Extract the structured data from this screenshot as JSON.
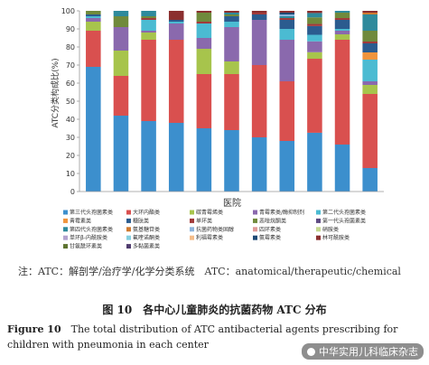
{
  "chart_data": {
    "type": "bar",
    "stacked": true,
    "xlabel": "医院",
    "ylabel": "ATC分类构成比(%)",
    "ylim": [
      0,
      100
    ],
    "yticks": [
      0,
      10,
      20,
      30,
      40,
      50,
      60,
      70,
      80,
      90,
      100
    ],
    "categories": [
      "1",
      "2",
      "3",
      "4",
      "5",
      "6",
      "7",
      "8",
      "9",
      "10",
      "11"
    ],
    "legend_position": "bottom",
    "series": [
      {
        "name": "第三代头孢菌素类",
        "color": "#3c8fcd",
        "values": [
          69,
          42,
          39,
          38,
          35,
          34,
          30,
          28,
          27,
          26,
          13
        ]
      },
      {
        "name": "大环内酯类",
        "color": "#d9504f",
        "values": [
          20,
          22,
          45,
          46,
          30,
          31,
          40,
          33,
          34,
          58,
          41
        ]
      },
      {
        "name": "碳青霉烯类",
        "color": "#a7c44c",
        "values": [
          5,
          14,
          4,
          0,
          14,
          7,
          0,
          0,
          3,
          3,
          5
        ]
      },
      {
        "name": "青霉素类/酶抑制剂",
        "color": "#8a69ad",
        "values": [
          2,
          13,
          1,
          9,
          6,
          19,
          25,
          23,
          5,
          2,
          2
        ]
      },
      {
        "name": "第二代头孢菌素类",
        "color": "#4bbbd2",
        "values": [
          1,
          0,
          6,
          1,
          8,
          3,
          0,
          6,
          3,
          1,
          12
        ]
      },
      {
        "name": "青霉素类",
        "color": "#f0943c",
        "values": [
          0,
          0,
          0,
          0,
          0,
          0,
          0,
          0,
          0,
          0,
          4
        ]
      },
      {
        "name": "糖肽类",
        "color": "#2b5c8f",
        "values": [
          1,
          0,
          0,
          1,
          0,
          3,
          3,
          5,
          4,
          5,
          5
        ]
      },
      {
        "name": "单环类",
        "color": "#a13a3a",
        "values": [
          0,
          0,
          1,
          0,
          1,
          0,
          1,
          1,
          1,
          1,
          1
        ]
      },
      {
        "name": "恶唑烷酮类",
        "color": "#708a3c",
        "values": [
          2,
          6,
          1,
          0,
          5,
          1,
          0,
          0,
          3,
          3,
          6
        ]
      },
      {
        "name": "第一代头孢菌素类",
        "color": "#5e4a82",
        "values": [
          0,
          0,
          0,
          0,
          0,
          0,
          0,
          0,
          0,
          0,
          0
        ]
      },
      {
        "name": "第四代头孢菌素类",
        "color": "#2e8a9c",
        "values": [
          0,
          3,
          3,
          0,
          0,
          1,
          0,
          1,
          2,
          1,
          9
        ]
      },
      {
        "name": "氨基糖苷类",
        "color": "#d07a30",
        "values": [
          0,
          0,
          0,
          0,
          0,
          0,
          0,
          0,
          0,
          0,
          1
        ]
      },
      {
        "name": "抗菌药物类固醇",
        "color": "#8db4dd",
        "values": [
          0,
          0,
          0,
          0,
          0,
          0,
          0,
          1,
          0,
          0,
          0
        ]
      },
      {
        "name": "四环素类",
        "color": "#e09a98",
        "values": [
          0,
          0,
          0,
          0,
          0,
          0,
          0,
          0,
          0,
          0,
          0
        ]
      },
      {
        "name": "硝胺类",
        "color": "#c4d88f",
        "values": [
          0,
          0,
          0,
          0,
          0,
          0,
          0,
          0,
          0,
          0,
          0
        ]
      },
      {
        "name": "单环β-内酰胺类",
        "color": "#b3a3cf",
        "values": [
          0,
          0,
          0,
          0,
          0,
          0,
          0,
          0,
          0,
          0,
          0
        ]
      },
      {
        "name": "氟喹诺酮类",
        "color": "#85d0e0",
        "values": [
          0,
          0,
          0,
          0,
          0,
          0,
          0,
          0,
          0,
          0,
          0
        ]
      },
      {
        "name": "利福霉素类",
        "color": "#f5bd8a",
        "values": [
          0,
          0,
          0,
          0,
          0,
          0,
          0,
          0,
          0,
          0,
          0
        ]
      },
      {
        "name": "氨霉素类",
        "color": "#1f4a75",
        "values": [
          0,
          0,
          0,
          0,
          0,
          0,
          0,
          1,
          0,
          0,
          0
        ]
      },
      {
        "name": "林可酰胺类",
        "color": "#8b2f2f",
        "values": [
          0,
          0,
          0,
          5,
          1,
          1,
          1,
          1,
          1,
          0,
          1
        ]
      },
      {
        "name": "甘氨酰环素类",
        "color": "#5d7330",
        "values": [
          0,
          0,
          0,
          0,
          0,
          0,
          0,
          0,
          0,
          0,
          0
        ]
      },
      {
        "name": "多黏菌素类",
        "color": "#4f3c6e",
        "values": [
          0,
          0,
          0,
          0,
          0,
          0,
          0,
          0,
          0,
          0,
          0
        ]
      }
    ]
  },
  "caption": {
    "note": "注：ATC：解剖学/治疗学/化学分类系统　ATC：anatomical/therapeutic/chemical",
    "figure_cn": "图 10　各中心儿童肺炎的抗菌药物 ATC 分布",
    "figure_en_label": "Figure 10",
    "figure_en_text": "　The total distribution of ATC antibacterial agents prescribing for children with pneumonia in each center"
  },
  "watermark": "中华实用儿科临床杂志"
}
